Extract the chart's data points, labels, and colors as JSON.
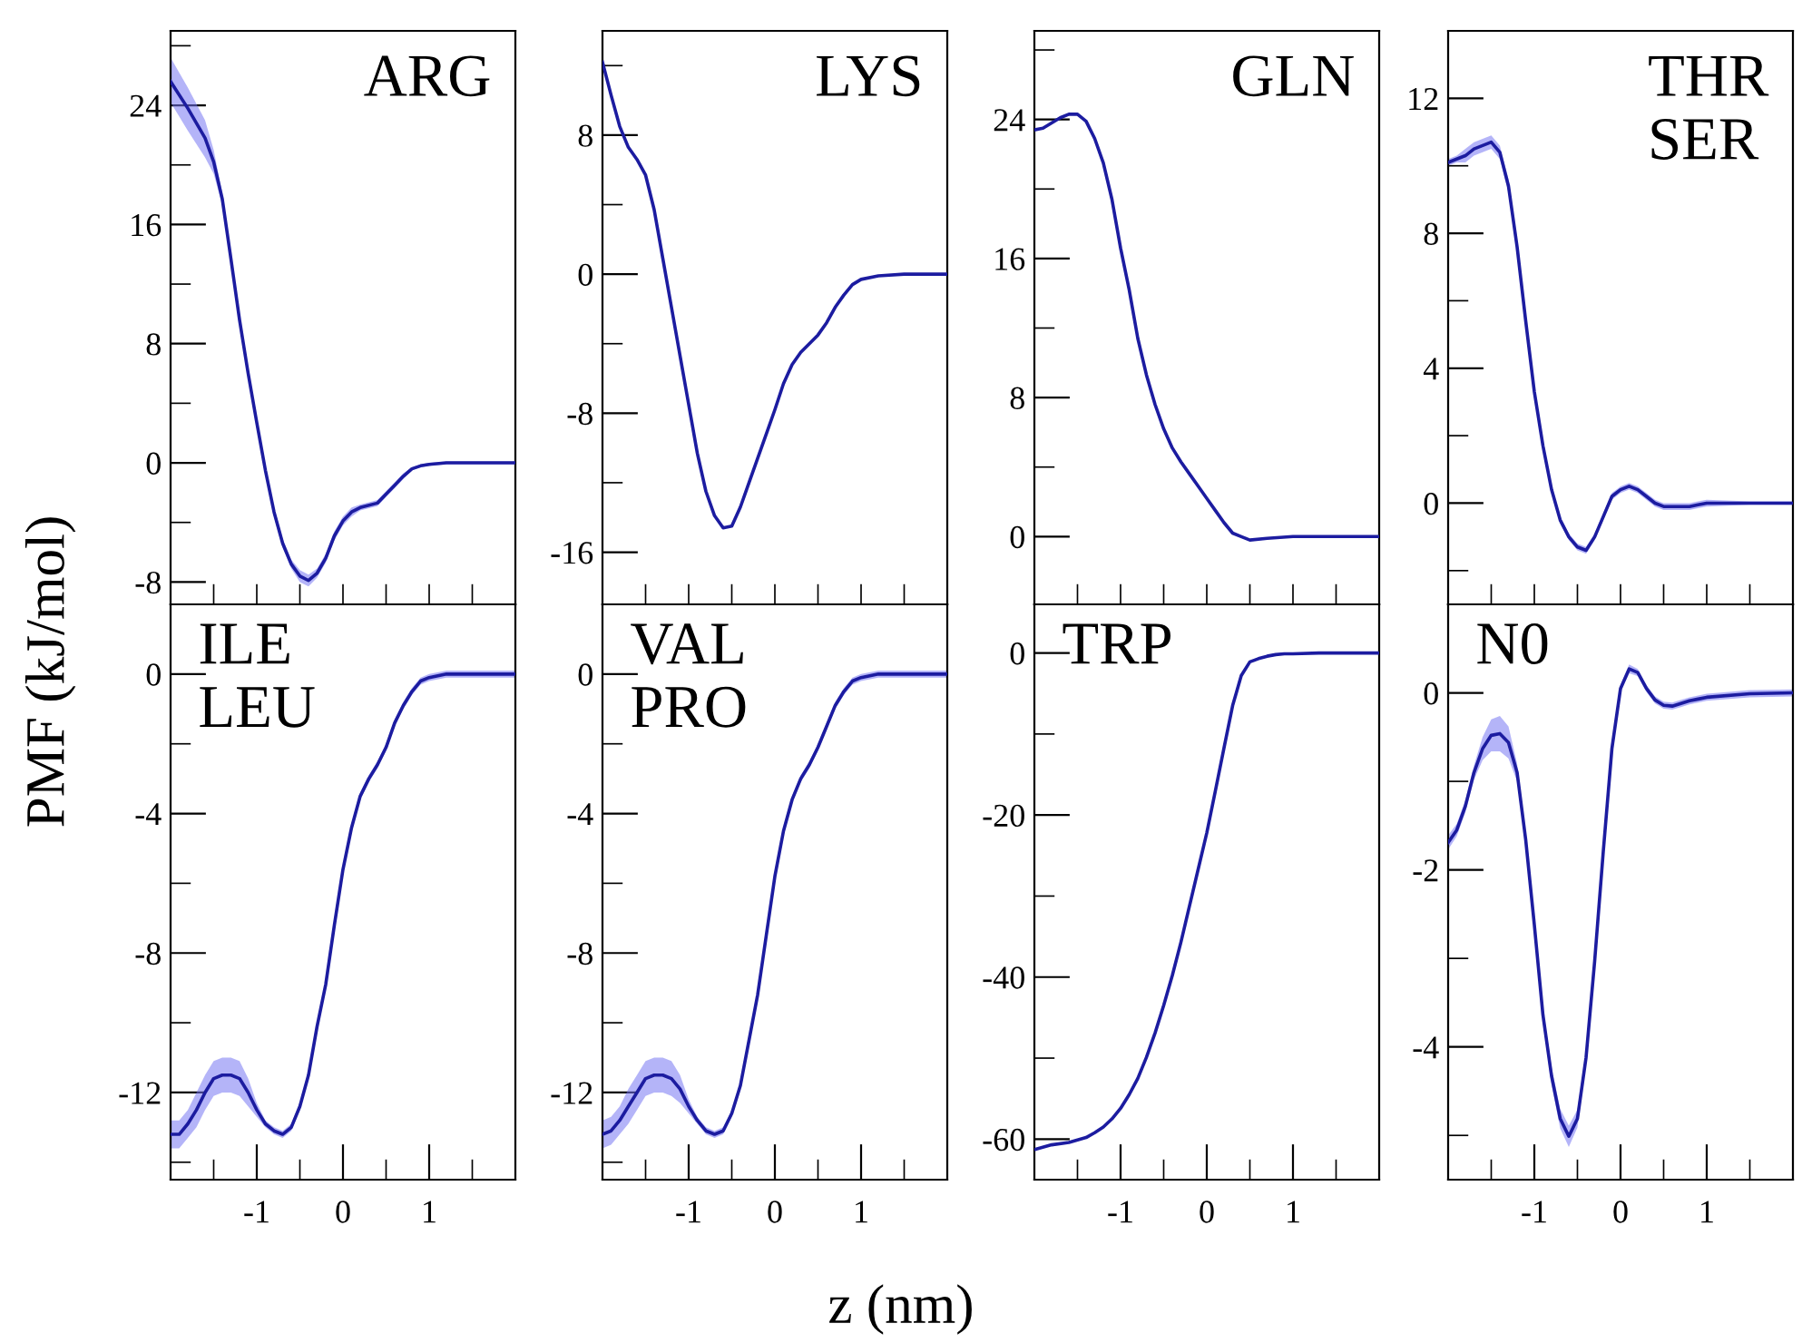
{
  "chart_data": [
    {
      "type": "line",
      "title": "ARG",
      "ylabel": "PMF (kJ/mol)",
      "tick_labels": "y",
      "xlim": [
        -2,
        2
      ],
      "ylim": [
        -9.5,
        29
      ],
      "xticks": [
        {
          "value": -1.5,
          "label": null
        },
        {
          "value": -1,
          "label": null
        },
        {
          "value": -0.5,
          "label": null
        },
        {
          "value": 0,
          "label": null
        },
        {
          "value": 0.5,
          "label": null
        },
        {
          "value": 1,
          "label": null
        },
        {
          "value": 1.5,
          "label": null
        }
      ],
      "yticks": [
        -8,
        {
          "value": -4,
          "label": null
        },
        0,
        {
          "value": 4,
          "label": null
        },
        8,
        {
          "value": 12,
          "label": null
        },
        16,
        {
          "value": 20,
          "label": null
        },
        24,
        {
          "value": 28,
          "label": null
        }
      ],
      "series": [
        {
          "color": "#1c1ca0",
          "x": [
            -2,
            -1.8,
            -1.6,
            -1.5,
            -1.4,
            -1.3,
            -1.2,
            -1.1,
            -1,
            -0.9,
            -0.8,
            -0.7,
            -0.6,
            -0.5,
            -0.4,
            -0.3,
            -0.2,
            -0.1,
            0,
            0.1,
            0.2,
            0.4,
            0.5,
            0.6,
            0.7,
            0.8,
            0.9,
            1,
            1.2,
            1.5,
            2
          ],
          "values": [
            25.6,
            23.8,
            21.8,
            20.2,
            17.7,
            13.7,
            9.6,
            6.0,
            2.7,
            -0.5,
            -3.3,
            -5.4,
            -6.8,
            -7.6,
            -7.9,
            -7.4,
            -6.4,
            -4.9,
            -3.9,
            -3.3,
            -3.0,
            -2.7,
            -2.1,
            -1.5,
            -0.9,
            -0.4,
            -0.2,
            -0.1,
            0,
            0,
            0
          ],
          "upper": [
            27.2,
            25.2,
            23.0,
            21.0,
            18.1,
            14.0,
            9.9,
            6.3,
            3.0,
            -0.2,
            -3.0,
            -5.1,
            -6.5,
            -7.2,
            -7.5,
            -7.1,
            -6.1,
            -4.6,
            -3.6,
            -3.0,
            -2.8,
            -2.5,
            -1.9,
            -1.3,
            -0.7,
            -0.3,
            -0.1,
            0,
            0.1,
            0.1,
            0.1
          ],
          "lower": [
            24.2,
            22.3,
            20.5,
            19.4,
            17.3,
            13.4,
            9.3,
            5.7,
            2.4,
            -0.8,
            -3.6,
            -5.7,
            -7.1,
            -8.0,
            -8.3,
            -7.7,
            -6.7,
            -5.2,
            -4.2,
            -3.6,
            -3.2,
            -2.9,
            -2.3,
            -1.7,
            -1.1,
            -0.5,
            -0.3,
            -0.2,
            -0.1,
            -0.1,
            -0.1
          ]
        }
      ]
    },
    {
      "type": "line",
      "title": "LYS",
      "tick_labels": "y",
      "xlim": [
        -2,
        2
      ],
      "ylim": [
        -19,
        14
      ],
      "xticks": [
        {
          "value": -1.5,
          "label": null
        },
        {
          "value": -1,
          "label": null
        },
        {
          "value": -0.5,
          "label": null
        },
        {
          "value": 0,
          "label": null
        },
        {
          "value": 0.5,
          "label": null
        },
        {
          "value": 1,
          "label": null
        },
        {
          "value": 1.5,
          "label": null
        }
      ],
      "yticks": [
        -16,
        {
          "value": -12,
          "label": null
        },
        -8,
        {
          "value": -4,
          "label": null
        },
        0,
        {
          "value": 4,
          "label": null
        },
        8,
        {
          "value": 12,
          "label": null
        }
      ],
      "series": [
        {
          "color": "#1c1ca0",
          "x": [
            -2,
            -1.9,
            -1.8,
            -1.7,
            -1.6,
            -1.5,
            -1.4,
            -1.3,
            -1.2,
            -1.1,
            -1,
            -0.9,
            -0.8,
            -0.7,
            -0.6,
            -0.5,
            -0.4,
            -0.3,
            -0.2,
            -0.1,
            0,
            0.1,
            0.2,
            0.3,
            0.4,
            0.5,
            0.6,
            0.7,
            0.8,
            0.9,
            1,
            1.2,
            1.5,
            2
          ],
          "values": [
            12.2,
            10.3,
            8.5,
            7.3,
            6.6,
            5.7,
            3.7,
            0.9,
            -1.9,
            -4.7,
            -7.5,
            -10.3,
            -12.5,
            -13.9,
            -14.6,
            -14.5,
            -13.4,
            -12.0,
            -10.6,
            -9.2,
            -7.8,
            -6.3,
            -5.2,
            -4.5,
            -4.0,
            -3.5,
            -2.8,
            -1.9,
            -1.2,
            -0.6,
            -0.3,
            -0.1,
            0,
            0
          ]
        }
      ]
    },
    {
      "type": "line",
      "title": "GLN",
      "tick_labels": "y",
      "xlim": [
        -2,
        2
      ],
      "ylim": [
        -3.9,
        29.1
      ],
      "xticks": [
        {
          "value": -1.5,
          "label": null
        },
        {
          "value": -1,
          "label": null
        },
        {
          "value": -0.5,
          "label": null
        },
        {
          "value": 0,
          "label": null
        },
        {
          "value": 0.5,
          "label": null
        },
        {
          "value": 1,
          "label": null
        },
        {
          "value": 1.5,
          "label": null
        }
      ],
      "yticks": [
        0,
        {
          "value": 4,
          "label": null
        },
        8,
        {
          "value": 12,
          "label": null
        },
        16,
        {
          "value": 20,
          "label": null
        },
        24,
        {
          "value": 28,
          "label": null
        }
      ],
      "series": [
        {
          "color": "#1c1ca0",
          "x": [
            -2,
            -1.9,
            -1.8,
            -1.7,
            -1.6,
            -1.5,
            -1.4,
            -1.3,
            -1.2,
            -1.1,
            -1,
            -0.9,
            -0.8,
            -0.7,
            -0.6,
            -0.5,
            -0.4,
            -0.3,
            -0.2,
            -0.1,
            0,
            0.1,
            0.2,
            0.3,
            0.4,
            0.5,
            0.7,
            1,
            2
          ],
          "values": [
            23.4,
            23.5,
            23.8,
            24.1,
            24.3,
            24.3,
            23.9,
            22.9,
            21.5,
            19.4,
            16.6,
            14.2,
            11.4,
            9.3,
            7.6,
            6.2,
            5.1,
            4.3,
            3.6,
            2.9,
            2.2,
            1.5,
            0.8,
            0.2,
            0.0,
            -0.2,
            -0.1,
            0,
            0
          ]
        }
      ]
    },
    {
      "type": "line",
      "title": "THR\nSER",
      "tick_labels": "y",
      "xlim": [
        -2,
        2
      ],
      "ylim": [
        -3,
        14
      ],
      "xticks": [
        {
          "value": -1.5,
          "label": null
        },
        {
          "value": -1,
          "label": null
        },
        {
          "value": -0.5,
          "label": null
        },
        {
          "value": 0,
          "label": null
        },
        {
          "value": 0.5,
          "label": null
        },
        {
          "value": 1,
          "label": null
        },
        {
          "value": 1.5,
          "label": null
        }
      ],
      "yticks": [
        {
          "value": -2,
          "label": null
        },
        0,
        {
          "value": 2,
          "label": null
        },
        4,
        {
          "value": 6,
          "label": null
        },
        8,
        {
          "value": 10,
          "label": null
        },
        12
      ],
      "series": [
        {
          "color": "#1c1ca0",
          "x": [
            -2,
            -1.9,
            -1.8,
            -1.7,
            -1.6,
            -1.5,
            -1.4,
            -1.3,
            -1.2,
            -1.1,
            -1,
            -0.9,
            -0.8,
            -0.7,
            -0.6,
            -0.5,
            -0.4,
            -0.3,
            -0.2,
            -0.1,
            0,
            0.1,
            0.2,
            0.3,
            0.4,
            0.5,
            0.6,
            0.7,
            0.8,
            0.9,
            1,
            1.5,
            2
          ],
          "values": [
            10.1,
            10.2,
            10.3,
            10.5,
            10.6,
            10.7,
            10.4,
            9.4,
            7.6,
            5.4,
            3.3,
            1.7,
            0.4,
            -0.5,
            -1.0,
            -1.3,
            -1.4,
            -1.0,
            -0.4,
            0.2,
            0.4,
            0.5,
            0.4,
            0.2,
            0.0,
            -0.1,
            -0.1,
            -0.1,
            -0.1,
            -0.05,
            0,
            0,
            0
          ],
          "upper": [
            10.2,
            10.3,
            10.5,
            10.7,
            10.8,
            10.9,
            10.6,
            9.6,
            7.8,
            5.5,
            3.4,
            1.8,
            0.5,
            -0.4,
            -0.9,
            -1.2,
            -1.3,
            -0.9,
            -0.3,
            0.3,
            0.5,
            0.6,
            0.5,
            0.3,
            0.1,
            0,
            0,
            0,
            0,
            0.05,
            0.1,
            0.05,
            0.05
          ],
          "lower": [
            10.0,
            10.1,
            10.1,
            10.3,
            10.4,
            10.5,
            10.2,
            9.2,
            7.4,
            5.3,
            3.2,
            1.6,
            0.3,
            -0.6,
            -1.1,
            -1.4,
            -1.5,
            -1.1,
            -0.5,
            0.1,
            0.3,
            0.4,
            0.3,
            0.1,
            -0.1,
            -0.2,
            -0.2,
            -0.2,
            -0.2,
            -0.15,
            -0.1,
            -0.05,
            -0.05
          ]
        }
      ]
    },
    {
      "type": "line",
      "title": "ILE\nLEU",
      "xlim": [
        -2,
        2
      ],
      "ylim": [
        -14.5,
        2
      ],
      "xticks": [
        {
          "value": -1.5,
          "label": null
        },
        -1,
        {
          "value": -0.5,
          "label": null
        },
        0,
        {
          "value": 0.5,
          "label": null
        },
        1,
        {
          "value": 1.5,
          "label": null
        }
      ],
      "yticks": [
        {
          "value": -14,
          "label": null
        },
        -12,
        {
          "value": -10,
          "label": null
        },
        -8,
        {
          "value": -6,
          "label": null
        },
        -4,
        {
          "value": -2,
          "label": null
        },
        0
      ],
      "series": [
        {
          "color": "#1c1ca0",
          "x": [
            -2,
            -1.9,
            -1.8,
            -1.7,
            -1.6,
            -1.5,
            -1.4,
            -1.3,
            -1.2,
            -1.1,
            -1,
            -0.9,
            -0.8,
            -0.7,
            -0.6,
            -0.5,
            -0.4,
            -0.3,
            -0.2,
            -0.1,
            0,
            0.1,
            0.2,
            0.3,
            0.4,
            0.5,
            0.6,
            0.7,
            0.8,
            0.9,
            1,
            1.2,
            2
          ],
          "values": [
            -13.2,
            -13.2,
            -12.9,
            -12.5,
            -12.0,
            -11.6,
            -11.5,
            -11.5,
            -11.6,
            -12.0,
            -12.5,
            -12.9,
            -13.1,
            -13.2,
            -13.0,
            -12.4,
            -11.5,
            -10.1,
            -8.9,
            -7.2,
            -5.6,
            -4.4,
            -3.5,
            -3.0,
            -2.6,
            -2.1,
            -1.4,
            -0.9,
            -0.5,
            -0.2,
            -0.1,
            0,
            0
          ],
          "upper": [
            -12.8,
            -12.8,
            -12.5,
            -12.0,
            -11.5,
            -11.1,
            -11.0,
            -11.0,
            -11.1,
            -11.6,
            -12.3,
            -12.8,
            -13.0,
            -13.1,
            -12.9,
            -12.3,
            -11.4,
            -10.0,
            -8.8,
            -7.1,
            -5.5,
            -4.3,
            -3.4,
            -2.9,
            -2.5,
            -2.0,
            -1.3,
            -0.8,
            -0.4,
            -0.1,
            0,
            0.1,
            0.1
          ],
          "lower": [
            -13.6,
            -13.6,
            -13.3,
            -13.0,
            -12.5,
            -12.1,
            -12.0,
            -12.0,
            -12.1,
            -12.4,
            -12.7,
            -13.0,
            -13.2,
            -13.3,
            -13.1,
            -12.5,
            -11.6,
            -10.2,
            -9.0,
            -7.3,
            -5.7,
            -4.5,
            -3.6,
            -3.1,
            -2.7,
            -2.2,
            -1.5,
            -1.0,
            -0.6,
            -0.3,
            -0.2,
            -0.1,
            -0.1
          ]
        }
      ]
    },
    {
      "type": "line",
      "title": "VAL\nPRO",
      "xlabel": "z (nm)",
      "xlim": [
        -2,
        2
      ],
      "ylim": [
        -14.5,
        2
      ],
      "xticks": [
        {
          "value": -1.5,
          "label": null
        },
        -1,
        {
          "value": -0.5,
          "label": null
        },
        0,
        {
          "value": 0.5,
          "label": null
        },
        1,
        {
          "value": 1.5,
          "label": null
        }
      ],
      "yticks": [
        {
          "value": -14,
          "label": null
        },
        -12,
        {
          "value": -10,
          "label": null
        },
        -8,
        {
          "value": -6,
          "label": null
        },
        -4,
        {
          "value": -2,
          "label": null
        },
        0
      ],
      "series": [
        {
          "color": "#1c1ca0",
          "x": [
            -2,
            -1.9,
            -1.8,
            -1.7,
            -1.6,
            -1.5,
            -1.4,
            -1.3,
            -1.2,
            -1.1,
            -1,
            -0.9,
            -0.8,
            -0.7,
            -0.6,
            -0.5,
            -0.4,
            -0.3,
            -0.2,
            -0.1,
            0,
            0.1,
            0.2,
            0.3,
            0.4,
            0.5,
            0.6,
            0.7,
            0.8,
            0.9,
            1,
            1.2,
            2
          ],
          "values": [
            -13.2,
            -13.1,
            -12.8,
            -12.4,
            -12.0,
            -11.6,
            -11.5,
            -11.5,
            -11.6,
            -11.9,
            -12.4,
            -12.8,
            -13.1,
            -13.2,
            -13.1,
            -12.6,
            -11.8,
            -10.5,
            -9.2,
            -7.5,
            -5.8,
            -4.5,
            -3.6,
            -3.0,
            -2.6,
            -2.1,
            -1.5,
            -0.9,
            -0.5,
            -0.2,
            -0.1,
            0,
            0
          ],
          "upper": [
            -12.8,
            -12.7,
            -12.4,
            -11.9,
            -11.5,
            -11.1,
            -11.0,
            -11.0,
            -11.1,
            -11.5,
            -12.2,
            -12.7,
            -13.0,
            -13.1,
            -13.0,
            -12.5,
            -11.7,
            -10.4,
            -9.1,
            -7.4,
            -5.7,
            -4.4,
            -3.5,
            -2.9,
            -2.5,
            -2.0,
            -1.4,
            -0.8,
            -0.4,
            -0.1,
            0,
            0.1,
            0.1
          ],
          "lower": [
            -13.6,
            -13.5,
            -13.2,
            -12.9,
            -12.5,
            -12.1,
            -12.0,
            -12.0,
            -12.1,
            -12.3,
            -12.6,
            -12.9,
            -13.2,
            -13.3,
            -13.2,
            -12.7,
            -11.9,
            -10.6,
            -9.3,
            -7.6,
            -5.9,
            -4.6,
            -3.7,
            -3.1,
            -2.7,
            -2.2,
            -1.6,
            -1.0,
            -0.6,
            -0.3,
            -0.2,
            -0.1,
            -0.1
          ]
        }
      ]
    },
    {
      "type": "line",
      "title": "TRP",
      "xlim": [
        -2,
        2
      ],
      "ylim": [
        -65,
        6
      ],
      "xticks": [
        {
          "value": -1.5,
          "label": null
        },
        -1,
        {
          "value": -0.5,
          "label": null
        },
        0,
        {
          "value": 0.5,
          "label": null
        },
        1,
        {
          "value": 1.5,
          "label": null
        }
      ],
      "yticks": [
        -60,
        {
          "value": -50,
          "label": null
        },
        -40,
        {
          "value": -30,
          "label": null
        },
        -20,
        {
          "value": -10,
          "label": null
        },
        0
      ],
      "series": [
        {
          "color": "#1c1ca0",
          "x": [
            -2,
            -1.8,
            -1.6,
            -1.5,
            -1.4,
            -1.3,
            -1.2,
            -1.1,
            -1,
            -0.9,
            -0.8,
            -0.7,
            -0.6,
            -0.5,
            -0.4,
            -0.3,
            -0.2,
            -0.1,
            0,
            0.1,
            0.2,
            0.3,
            0.4,
            0.5,
            0.6,
            0.7,
            0.8,
            0.9,
            1,
            1.3,
            2
          ],
          "values": [
            -61.3,
            -60.7,
            -60.4,
            -60.1,
            -59.8,
            -59.2,
            -58.5,
            -57.5,
            -56.2,
            -54.5,
            -52.5,
            -49.9,
            -46.9,
            -43.5,
            -39.8,
            -35.7,
            -31.2,
            -26.7,
            -22.2,
            -17.0,
            -11.7,
            -6.5,
            -2.8,
            -1.1,
            -0.7,
            -0.4,
            -0.2,
            -0.1,
            -0.1,
            0,
            0
          ]
        }
      ]
    },
    {
      "type": "line",
      "title": "N0",
      "xlim": [
        -2,
        2
      ],
      "ylim": [
        -5.5,
        1.0
      ],
      "xticks": [
        {
          "value": -1.5,
          "label": null
        },
        -1,
        {
          "value": -0.5,
          "label": null
        },
        0,
        {
          "value": 0.5,
          "label": null
        },
        1,
        {
          "value": 1.5,
          "label": null
        }
      ],
      "yticks": [
        {
          "value": -5,
          "label": null
        },
        -4,
        {
          "value": -3,
          "label": null
        },
        -2,
        {
          "value": -1,
          "label": null
        },
        0
      ],
      "series": [
        {
          "color": "#1c1ca0",
          "x": [
            -2,
            -1.9,
            -1.8,
            -1.7,
            -1.6,
            -1.5,
            -1.4,
            -1.3,
            -1.2,
            -1.1,
            -1,
            -0.9,
            -0.8,
            -0.7,
            -0.6,
            -0.5,
            -0.4,
            -0.3,
            -0.2,
            -0.1,
            0,
            0.1,
            0.2,
            0.3,
            0.4,
            0.5,
            0.6,
            0.7,
            0.8,
            0.9,
            1,
            1.5,
            2
          ],
          "values": [
            -1.69,
            -1.55,
            -1.28,
            -0.9,
            -0.63,
            -0.48,
            -0.46,
            -0.56,
            -0.9,
            -1.66,
            -2.62,
            -3.64,
            -4.33,
            -4.81,
            -5.01,
            -4.81,
            -4.12,
            -3.03,
            -1.79,
            -0.63,
            0.05,
            0.27,
            0.23,
            0.05,
            -0.08,
            -0.14,
            -0.15,
            -0.12,
            -0.09,
            -0.07,
            -0.05,
            -0.01,
            0
          ],
          "upper": [
            -1.61,
            -1.48,
            -1.21,
            -0.82,
            -0.5,
            -0.3,
            -0.26,
            -0.38,
            -0.8,
            -1.6,
            -2.56,
            -3.56,
            -4.23,
            -4.7,
            -4.89,
            -4.71,
            -4.05,
            -2.98,
            -1.75,
            -0.59,
            0.09,
            0.32,
            0.27,
            0.09,
            -0.04,
            -0.1,
            -0.11,
            -0.08,
            -0.05,
            -0.03,
            -0.01,
            0.03,
            0.04
          ],
          "lower": [
            -1.77,
            -1.62,
            -1.35,
            -0.98,
            -0.76,
            -0.66,
            -0.66,
            -0.74,
            -1.0,
            -1.72,
            -2.68,
            -3.72,
            -4.43,
            -4.92,
            -5.13,
            -4.91,
            -4.19,
            -3.08,
            -1.83,
            -0.67,
            0.01,
            0.22,
            0.19,
            0.01,
            -0.12,
            -0.18,
            -0.19,
            -0.16,
            -0.13,
            -0.11,
            -0.09,
            -0.05,
            -0.04
          ]
        }
      ]
    }
  ]
}
